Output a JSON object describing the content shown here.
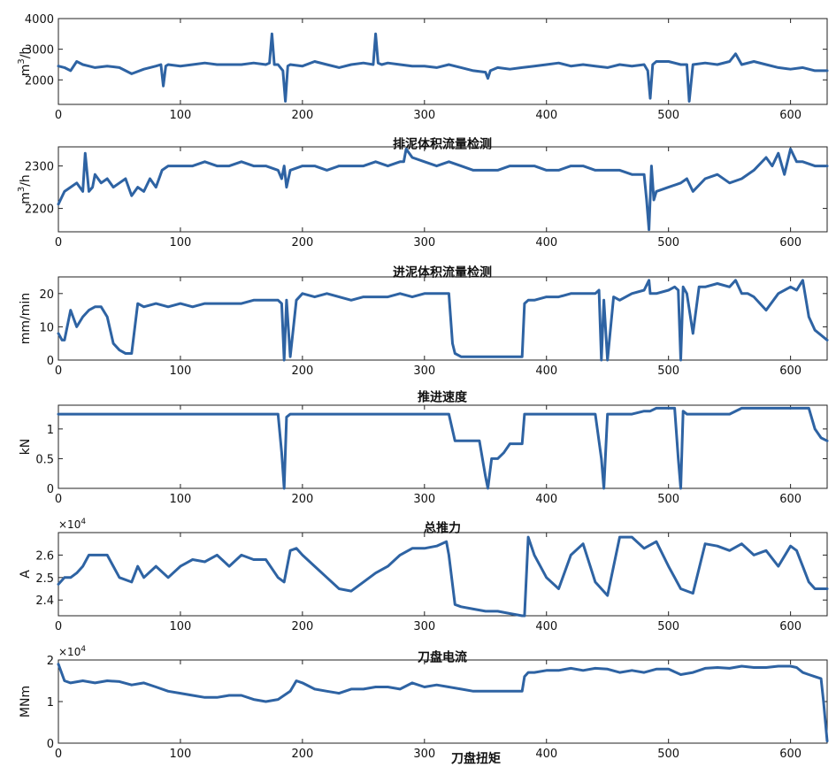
{
  "chart_data": [
    {
      "type": "line",
      "title": "",
      "ylabel": "m^3/h",
      "exponent": "",
      "xlim": [
        0,
        630
      ],
      "ylim": [
        1200,
        4000
      ],
      "xticks": [
        0,
        100,
        200,
        300,
        400,
        500,
        600
      ],
      "yticks": [
        2000,
        3000,
        4000
      ],
      "x": [
        0,
        5,
        10,
        15,
        20,
        25,
        30,
        40,
        50,
        60,
        70,
        80,
        84,
        86,
        88,
        90,
        100,
        110,
        120,
        130,
        140,
        150,
        160,
        170,
        173,
        175,
        177,
        180,
        184,
        186,
        188,
        190,
        200,
        210,
        220,
        230,
        240,
        250,
        258,
        260,
        262,
        265,
        270,
        280,
        290,
        300,
        310,
        320,
        330,
        340,
        350,
        352,
        354,
        360,
        370,
        380,
        390,
        400,
        410,
        420,
        430,
        440,
        450,
        460,
        470,
        480,
        483,
        485,
        487,
        490,
        500,
        510,
        515,
        517,
        520,
        530,
        540,
        550,
        555,
        560,
        570,
        580,
        590,
        600,
        610,
        620,
        630
      ],
      "series": [
        {
          "name": "",
          "values": [
            2450,
            2400,
            2300,
            2600,
            2500,
            2450,
            2400,
            2450,
            2400,
            2200,
            2350,
            2450,
            2500,
            1800,
            2450,
            2500,
            2450,
            2500,
            2550,
            2500,
            2500,
            2500,
            2550,
            2500,
            2550,
            3500,
            2500,
            2500,
            2300,
            1300,
            2450,
            2500,
            2450,
            2600,
            2500,
            2400,
            2500,
            2550,
            2500,
            3500,
            2550,
            2500,
            2550,
            2500,
            2450,
            2450,
            2400,
            2500,
            2400,
            2300,
            2250,
            2050,
            2300,
            2400,
            2350,
            2400,
            2450,
            2500,
            2550,
            2450,
            2500,
            2450,
            2400,
            2500,
            2450,
            2500,
            2300,
            1400,
            2500,
            2600,
            2600,
            2500,
            2500,
            1300,
            2500,
            2550,
            2500,
            2600,
            2850,
            2500,
            2600,
            2500,
            2400,
            2350,
            2400,
            2300,
            2300
          ]
        }
      ]
    },
    {
      "type": "line",
      "title": "排泥体积流量检测",
      "ylabel": "m^3/h",
      "exponent": "",
      "xlim": [
        0,
        630
      ],
      "ylim": [
        2145,
        2345
      ],
      "xticks": [
        0,
        100,
        200,
        300,
        400,
        500,
        600
      ],
      "yticks": [
        2200,
        2300
      ],
      "x": [
        0,
        5,
        10,
        15,
        20,
        22,
        25,
        28,
        30,
        35,
        40,
        45,
        50,
        55,
        60,
        65,
        70,
        75,
        80,
        85,
        90,
        100,
        110,
        120,
        130,
        140,
        150,
        160,
        170,
        180,
        183,
        185,
        187,
        190,
        200,
        210,
        220,
        230,
        240,
        250,
        260,
        270,
        280,
        283,
        285,
        290,
        300,
        310,
        320,
        330,
        340,
        350,
        360,
        370,
        380,
        390,
        400,
        410,
        420,
        430,
        440,
        450,
        460,
        470,
        480,
        482,
        484,
        486,
        488,
        490,
        500,
        510,
        515,
        520,
        530,
        540,
        550,
        560,
        570,
        580,
        585,
        590,
        595,
        600,
        605,
        610,
        620,
        630
      ],
      "series": [
        {
          "name": "",
          "values": [
            2210,
            2240,
            2250,
            2260,
            2240,
            2330,
            2240,
            2250,
            2280,
            2260,
            2270,
            2250,
            2260,
            2270,
            2230,
            2250,
            2240,
            2270,
            2250,
            2290,
            2300,
            2300,
            2300,
            2310,
            2300,
            2300,
            2310,
            2300,
            2300,
            2290,
            2270,
            2300,
            2250,
            2290,
            2300,
            2300,
            2290,
            2300,
            2300,
            2300,
            2310,
            2300,
            2310,
            2310,
            2340,
            2320,
            2310,
            2300,
            2310,
            2300,
            2290,
            2290,
            2290,
            2300,
            2300,
            2300,
            2290,
            2290,
            2300,
            2300,
            2290,
            2290,
            2290,
            2280,
            2280,
            2220,
            2150,
            2300,
            2220,
            2240,
            2250,
            2260,
            2270,
            2240,
            2270,
            2280,
            2260,
            2270,
            2290,
            2320,
            2300,
            2330,
            2280,
            2340,
            2310,
            2310,
            2300,
            2300
          ]
        }
      ]
    },
    {
      "type": "line",
      "title": "进泥体积流量检测",
      "ylabel": "mm/min",
      "exponent": "",
      "xlim": [
        0,
        630
      ],
      "ylim": [
        0,
        25
      ],
      "xticks": [
        0,
        100,
        200,
        300,
        400,
        500,
        600
      ],
      "yticks": [
        0,
        10,
        20
      ],
      "x": [
        0,
        3,
        5,
        10,
        15,
        20,
        25,
        30,
        35,
        40,
        45,
        50,
        55,
        60,
        65,
        70,
        80,
        90,
        100,
        110,
        120,
        130,
        140,
        150,
        160,
        170,
        180,
        183,
        185,
        187,
        190,
        195,
        200,
        210,
        220,
        230,
        240,
        250,
        260,
        270,
        280,
        290,
        300,
        310,
        320,
        323,
        325,
        330,
        340,
        350,
        360,
        370,
        380,
        382,
        385,
        390,
        400,
        410,
        420,
        430,
        440,
        443,
        445,
        447,
        450,
        455,
        460,
        470,
        480,
        484,
        485,
        490,
        500,
        505,
        508,
        510,
        512,
        515,
        520,
        525,
        530,
        540,
        550,
        555,
        560,
        565,
        570,
        580,
        590,
        600,
        605,
        610,
        615,
        620,
        630
      ],
      "series": [
        {
          "name": "",
          "values": [
            8,
            6,
            6,
            15,
            10,
            13,
            15,
            16,
            16,
            13,
            5,
            3,
            2,
            2,
            17,
            16,
            17,
            16,
            17,
            16,
            17,
            17,
            17,
            17,
            18,
            18,
            18,
            17,
            0,
            18,
            1,
            18,
            20,
            19,
            20,
            19,
            18,
            19,
            19,
            19,
            20,
            19,
            20,
            20,
            20,
            5,
            2,
            1,
            1,
            1,
            1,
            1,
            1,
            17,
            18,
            18,
            19,
            19,
            20,
            20,
            20,
            21,
            0,
            18,
            0,
            19,
            18,
            20,
            21,
            24,
            20,
            20,
            21,
            22,
            21,
            0,
            22,
            20,
            8,
            22,
            22,
            23,
            22,
            24,
            20,
            20,
            19,
            15,
            20,
            22,
            21,
            24,
            13,
            9,
            6
          ]
        }
      ]
    },
    {
      "type": "line",
      "title": "推进速度",
      "ylabel": "kN",
      "exponent": "",
      "xlim": [
        0,
        630
      ],
      "ylim": [
        0,
        1.4
      ],
      "xticks": [
        0,
        100,
        200,
        300,
        400,
        500,
        600
      ],
      "yticks": [
        0,
        0.5,
        1
      ],
      "x": [
        0,
        100,
        180,
        183,
        185,
        187,
        190,
        200,
        300,
        320,
        325,
        330,
        340,
        345,
        350,
        352,
        355,
        360,
        365,
        370,
        375,
        380,
        382,
        385,
        400,
        440,
        445,
        447,
        450,
        455,
        460,
        470,
        480,
        485,
        490,
        500,
        505,
        508,
        510,
        512,
        515,
        520,
        530,
        550,
        560,
        600,
        610,
        615,
        620,
        625,
        630
      ],
      "series": [
        {
          "name": "",
          "values": [
            1.25,
            1.25,
            1.25,
            0.6,
            0,
            1.2,
            1.25,
            1.25,
            1.25,
            1.25,
            0.8,
            0.8,
            0.8,
            0.8,
            0.2,
            0,
            0.5,
            0.5,
            0.6,
            0.75,
            0.75,
            0.75,
            1.25,
            1.25,
            1.25,
            1.25,
            0.5,
            0,
            1.25,
            1.25,
            1.25,
            1.25,
            1.3,
            1.3,
            1.35,
            1.35,
            1.35,
            0.5,
            0,
            1.3,
            1.25,
            1.25,
            1.25,
            1.25,
            1.35,
            1.35,
            1.35,
            1.35,
            1.0,
            0.85,
            0.8
          ]
        }
      ]
    },
    {
      "type": "line",
      "title": "总推力",
      "ylabel": "A",
      "exponent": "×10^4",
      "xlim": [
        0,
        630
      ],
      "ylim": [
        2.33,
        2.7
      ],
      "xticks": [
        0,
        100,
        200,
        300,
        400,
        500,
        600
      ],
      "yticks": [
        2.4,
        2.5,
        2.6
      ],
      "x": [
        0,
        5,
        10,
        15,
        20,
        25,
        30,
        35,
        40,
        45,
        50,
        60,
        65,
        70,
        80,
        90,
        100,
        110,
        120,
        130,
        140,
        150,
        160,
        170,
        180,
        185,
        190,
        195,
        200,
        210,
        220,
        230,
        240,
        250,
        260,
        270,
        280,
        290,
        300,
        310,
        318,
        320,
        325,
        330,
        340,
        350,
        360,
        370,
        380,
        382,
        385,
        390,
        400,
        410,
        420,
        430,
        440,
        445,
        450,
        460,
        470,
        480,
        490,
        500,
        510,
        520,
        530,
        540,
        550,
        560,
        570,
        580,
        590,
        600,
        605,
        610,
        615,
        620,
        630
      ],
      "series": [
        {
          "name": "",
          "values": [
            2.47,
            2.5,
            2.5,
            2.52,
            2.55,
            2.6,
            2.6,
            2.6,
            2.6,
            2.55,
            2.5,
            2.48,
            2.55,
            2.5,
            2.55,
            2.5,
            2.55,
            2.58,
            2.57,
            2.6,
            2.55,
            2.6,
            2.58,
            2.58,
            2.5,
            2.48,
            2.62,
            2.63,
            2.6,
            2.55,
            2.5,
            2.45,
            2.44,
            2.48,
            2.52,
            2.55,
            2.6,
            2.63,
            2.63,
            2.64,
            2.66,
            2.6,
            2.38,
            2.37,
            2.36,
            2.35,
            2.35,
            2.34,
            2.33,
            2.33,
            2.68,
            2.6,
            2.5,
            2.45,
            2.6,
            2.65,
            2.48,
            2.45,
            2.42,
            2.68,
            2.68,
            2.63,
            2.66,
            2.55,
            2.45,
            2.43,
            2.65,
            2.64,
            2.62,
            2.65,
            2.6,
            2.62,
            2.55,
            2.64,
            2.62,
            2.55,
            2.48,
            2.45,
            2.45
          ]
        }
      ]
    },
    {
      "type": "line",
      "title": "刀盘电流",
      "ylabel": "MNm",
      "exponent": "×10^4",
      "xlim": [
        0,
        630
      ],
      "ylim": [
        0,
        2
      ],
      "xticks": [
        0,
        100,
        200,
        300,
        400,
        500,
        600
      ],
      "yticks": [
        0,
        1,
        2
      ],
      "x": [
        0,
        5,
        10,
        20,
        30,
        40,
        50,
        60,
        70,
        80,
        90,
        100,
        110,
        120,
        130,
        140,
        150,
        160,
        170,
        180,
        190,
        195,
        200,
        210,
        220,
        230,
        240,
        250,
        260,
        270,
        280,
        290,
        300,
        310,
        320,
        330,
        340,
        350,
        360,
        370,
        380,
        382,
        385,
        390,
        400,
        410,
        420,
        430,
        440,
        450,
        460,
        470,
        480,
        490,
        500,
        510,
        520,
        530,
        540,
        550,
        560,
        570,
        580,
        590,
        600,
        605,
        610,
        615,
        620,
        625,
        627,
        630
      ],
      "series": [
        {
          "name": "",
          "values": [
            1.9,
            1.5,
            1.45,
            1.5,
            1.45,
            1.5,
            1.48,
            1.4,
            1.45,
            1.35,
            1.25,
            1.2,
            1.15,
            1.1,
            1.1,
            1.15,
            1.15,
            1.05,
            1.0,
            1.05,
            1.25,
            1.5,
            1.45,
            1.3,
            1.25,
            1.2,
            1.3,
            1.3,
            1.35,
            1.35,
            1.3,
            1.45,
            1.35,
            1.4,
            1.35,
            1.3,
            1.25,
            1.25,
            1.25,
            1.25,
            1.25,
            1.6,
            1.7,
            1.7,
            1.75,
            1.75,
            1.8,
            1.75,
            1.8,
            1.78,
            1.7,
            1.75,
            1.7,
            1.78,
            1.78,
            1.65,
            1.7,
            1.8,
            1.82,
            1.8,
            1.85,
            1.82,
            1.82,
            1.85,
            1.85,
            1.82,
            1.7,
            1.65,
            1.6,
            1.55,
            1.0,
            0.05
          ]
        }
      ]
    }
  ],
  "footer_title": "刀盘扭矩"
}
